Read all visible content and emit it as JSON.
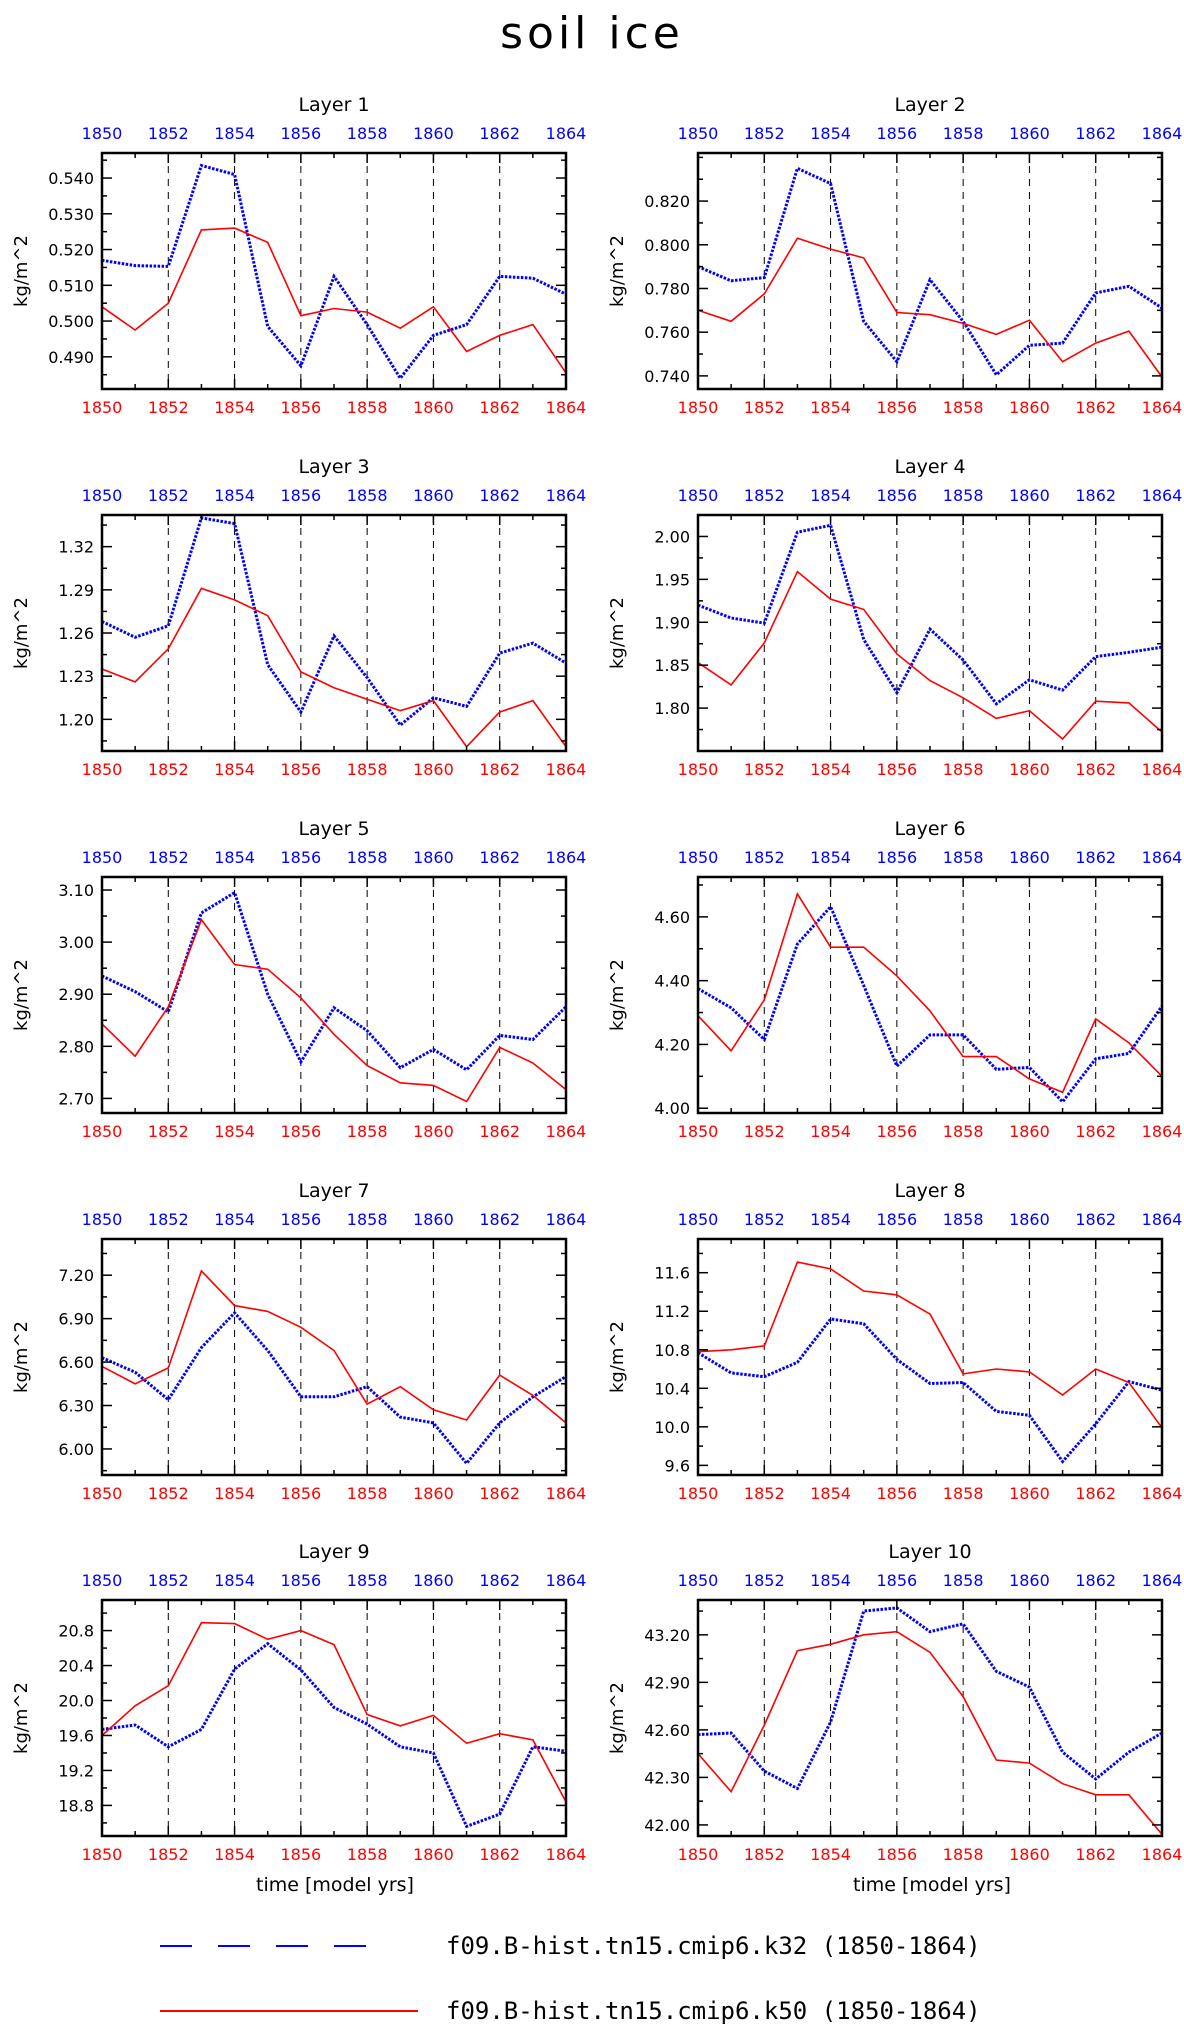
{
  "page": {
    "title": "soil ice",
    "ylabel": "kg/m^2",
    "xlabel": "time [model yrs]"
  },
  "legend": [
    {
      "label": "f09.B-hist.tn15.cmip6.k32 (1850-1864)",
      "color": "#0000ff",
      "style": "dashed"
    },
    {
      "label": "f09.B-hist.tn15.cmip6.k50 (1850-1864)",
      "color": "#ff0000",
      "style": "solid"
    }
  ],
  "colors": {
    "top_axis": "#0000ff",
    "bottom_axis": "#ff0000",
    "series_k32": "#0000ff",
    "series_k50": "#ff0000"
  },
  "chart_data": [
    {
      "type": "line",
      "title": "Layer 1",
      "x": [
        1850,
        1851,
        1852,
        1853,
        1854,
        1855,
        1856,
        1857,
        1858,
        1859,
        1860,
        1861,
        1862,
        1863,
        1864
      ],
      "x_ticks": [
        "1850",
        "1852",
        "1854",
        "1856",
        "1858",
        "1860",
        "1862",
        "1864"
      ],
      "ylim": [
        0.481,
        0.547
      ],
      "y_ticks": [
        "0.490",
        "0.500",
        "0.510",
        "0.520",
        "0.530",
        "0.540"
      ],
      "series": [
        {
          "values": [
            0.517,
            0.5155,
            0.5153,
            0.5435,
            0.541,
            0.4985,
            0.4875,
            0.5125,
            0.499,
            0.484,
            0.496,
            0.499,
            0.5125,
            0.512,
            0.5075
          ]
        },
        {
          "values": [
            0.504,
            0.4975,
            0.505,
            0.5255,
            0.526,
            0.522,
            0.5015,
            0.5035,
            0.5025,
            0.498,
            0.504,
            0.4915,
            0.496,
            0.499,
            0.4855
          ]
        }
      ]
    },
    {
      "type": "line",
      "title": "Layer 2",
      "x": [
        1850,
        1851,
        1852,
        1853,
        1854,
        1855,
        1856,
        1857,
        1858,
        1859,
        1860,
        1861,
        1862,
        1863,
        1864
      ],
      "x_ticks": [
        "1850",
        "1852",
        "1854",
        "1856",
        "1858",
        "1860",
        "1862",
        "1864"
      ],
      "ylim": [
        0.734,
        0.842
      ],
      "y_ticks": [
        "0.740",
        "0.760",
        "0.780",
        "0.800",
        "0.820"
      ],
      "series": [
        {
          "values": [
            0.79,
            0.7835,
            0.785,
            0.835,
            0.828,
            0.765,
            0.7465,
            0.784,
            0.765,
            0.7405,
            0.754,
            0.755,
            0.778,
            0.781,
            0.771
          ]
        },
        {
          "values": [
            0.77,
            0.765,
            0.7775,
            0.803,
            0.798,
            0.794,
            0.769,
            0.768,
            0.764,
            0.759,
            0.7655,
            0.7465,
            0.755,
            0.7605,
            0.7395
          ]
        }
      ]
    },
    {
      "type": "line",
      "title": "Layer 3",
      "x": [
        1850,
        1851,
        1852,
        1853,
        1854,
        1855,
        1856,
        1857,
        1858,
        1859,
        1860,
        1861,
        1862,
        1863,
        1864
      ],
      "x_ticks": [
        "1850",
        "1852",
        "1854",
        "1856",
        "1858",
        "1860",
        "1862",
        "1864"
      ],
      "ylim": [
        1.178,
        1.342
      ],
      "y_ticks": [
        "1.20",
        "1.23",
        "1.26",
        "1.29",
        "1.32"
      ],
      "series": [
        {
          "values": [
            1.268,
            1.257,
            1.265,
            1.34,
            1.336,
            1.238,
            1.205,
            1.258,
            1.229,
            1.196,
            1.215,
            1.209,
            1.246,
            1.253,
            1.239
          ]
        },
        {
          "values": [
            1.235,
            1.226,
            1.249,
            1.291,
            1.283,
            1.272,
            1.233,
            1.222,
            1.214,
            1.206,
            1.213,
            1.181,
            1.205,
            1.213,
            1.181
          ]
        }
      ]
    },
    {
      "type": "line",
      "title": "Layer 4",
      "x": [
        1850,
        1851,
        1852,
        1853,
        1854,
        1855,
        1856,
        1857,
        1858,
        1859,
        1860,
        1861,
        1862,
        1863,
        1864
      ],
      "x_ticks": [
        "1850",
        "1852",
        "1854",
        "1856",
        "1858",
        "1860",
        "1862",
        "1864"
      ],
      "ylim": [
        1.75,
        2.025
      ],
      "y_ticks": [
        "1.80",
        "1.85",
        "1.90",
        "1.95",
        "2.00"
      ],
      "series": [
        {
          "values": [
            1.92,
            1.905,
            1.899,
            2.005,
            2.013,
            1.88,
            1.818,
            1.892,
            1.856,
            1.805,
            1.833,
            1.821,
            1.86,
            1.865,
            1.871
          ]
        },
        {
          "values": [
            1.853,
            1.827,
            1.876,
            1.959,
            1.927,
            1.915,
            1.863,
            1.832,
            1.812,
            1.788,
            1.797,
            1.764,
            1.808,
            1.806,
            1.772
          ]
        }
      ]
    },
    {
      "type": "line",
      "title": "Layer 5",
      "x": [
        1850,
        1851,
        1852,
        1853,
        1854,
        1855,
        1856,
        1857,
        1858,
        1859,
        1860,
        1861,
        1862,
        1863,
        1864
      ],
      "x_ticks": [
        "1850",
        "1852",
        "1854",
        "1856",
        "1858",
        "1860",
        "1862",
        "1864"
      ],
      "ylim": [
        2.672,
        3.125
      ],
      "y_ticks": [
        "2.70",
        "2.80",
        "2.90",
        "3.00",
        "3.10"
      ],
      "series": [
        {
          "values": [
            2.935,
            2.905,
            2.866,
            3.056,
            3.095,
            2.9,
            2.77,
            2.874,
            2.83,
            2.759,
            2.794,
            2.755,
            2.821,
            2.813,
            2.876
          ]
        },
        {
          "values": [
            2.843,
            2.781,
            2.876,
            3.043,
            2.957,
            2.948,
            2.893,
            2.823,
            2.763,
            2.73,
            2.725,
            2.694,
            2.798,
            2.768,
            2.717
          ]
        }
      ]
    },
    {
      "type": "line",
      "title": "Layer 6",
      "x": [
        1850,
        1851,
        1852,
        1853,
        1854,
        1855,
        1856,
        1857,
        1858,
        1859,
        1860,
        1861,
        1862,
        1863,
        1864
      ],
      "x_ticks": [
        "1850",
        "1852",
        "1854",
        "1856",
        "1858",
        "1860",
        "1862",
        "1864"
      ],
      "ylim": [
        3.985,
        4.725
      ],
      "y_ticks": [
        "4.00",
        "4.20",
        "4.40",
        "4.60"
      ],
      "series": [
        {
          "values": [
            4.375,
            4.315,
            4.215,
            4.515,
            4.632,
            4.385,
            4.132,
            4.23,
            4.23,
            4.122,
            4.128,
            4.02,
            4.155,
            4.172,
            4.32
          ]
        },
        {
          "values": [
            4.29,
            4.18,
            4.34,
            4.672,
            4.505,
            4.505,
            4.415,
            4.305,
            4.162,
            4.162,
            4.092,
            4.05,
            4.28,
            4.205,
            4.1
          ]
        }
      ]
    },
    {
      "type": "line",
      "title": "Layer 7",
      "x": [
        1850,
        1851,
        1852,
        1853,
        1854,
        1855,
        1856,
        1857,
        1858,
        1859,
        1860,
        1861,
        1862,
        1863,
        1864
      ],
      "x_ticks": [
        "1850",
        "1852",
        "1854",
        "1856",
        "1858",
        "1860",
        "1862",
        "1864"
      ],
      "ylim": [
        5.82,
        7.45
      ],
      "y_ticks": [
        "6.00",
        "6.30",
        "6.60",
        "6.90",
        "7.20"
      ],
      "series": [
        {
          "values": [
            6.63,
            6.53,
            6.34,
            6.7,
            6.94,
            6.68,
            6.36,
            6.36,
            6.43,
            6.22,
            6.18,
            5.9,
            6.18,
            6.36,
            6.5
          ]
        },
        {
          "values": [
            6.57,
            6.45,
            6.56,
            7.23,
            6.99,
            6.95,
            6.84,
            6.68,
            6.31,
            6.43,
            6.27,
            6.2,
            6.51,
            6.37,
            6.18
          ]
        }
      ]
    },
    {
      "type": "line",
      "title": "Layer 8",
      "x": [
        1850,
        1851,
        1852,
        1853,
        1854,
        1855,
        1856,
        1857,
        1858,
        1859,
        1860,
        1861,
        1862,
        1863,
        1864
      ],
      "x_ticks": [
        "1850",
        "1852",
        "1854",
        "1856",
        "1858",
        "1860",
        "1862",
        "1864"
      ],
      "ylim": [
        9.5,
        11.95
      ],
      "y_ticks": [
        "9.6",
        "10.0",
        "10.4",
        "10.8",
        "11.2",
        "11.6"
      ],
      "series": [
        {
          "values": [
            10.77,
            10.56,
            10.52,
            10.67,
            11.12,
            11.07,
            10.7,
            10.45,
            10.46,
            10.16,
            10.12,
            9.64,
            10.03,
            10.47,
            10.38
          ]
        },
        {
          "values": [
            10.78,
            10.8,
            10.84,
            11.71,
            11.64,
            11.41,
            11.37,
            11.17,
            10.55,
            10.6,
            10.57,
            10.33,
            10.6,
            10.46,
            9.99
          ]
        }
      ]
    },
    {
      "type": "line",
      "title": "Layer 9",
      "x": [
        1850,
        1851,
        1852,
        1853,
        1854,
        1855,
        1856,
        1857,
        1858,
        1859,
        1860,
        1861,
        1862,
        1863,
        1864
      ],
      "x_ticks": [
        "1850",
        "1852",
        "1854",
        "1856",
        "1858",
        "1860",
        "1862",
        "1864"
      ],
      "ylim": [
        18.45,
        21.15
      ],
      "y_ticks": [
        "18.8",
        "19.2",
        "19.6",
        "20.0",
        "20.4",
        "20.8"
      ],
      "series": [
        {
          "values": [
            19.67,
            19.72,
            19.47,
            19.67,
            20.36,
            20.65,
            20.35,
            19.92,
            19.73,
            19.47,
            19.4,
            18.56,
            18.7,
            19.47,
            19.42
          ]
        },
        {
          "values": [
            19.6,
            19.94,
            20.17,
            20.89,
            20.88,
            20.7,
            20.8,
            20.64,
            19.84,
            19.71,
            19.83,
            19.51,
            19.62,
            19.55,
            18.84
          ]
        }
      ]
    },
    {
      "type": "line",
      "title": "Layer 10",
      "x": [
        1850,
        1851,
        1852,
        1853,
        1854,
        1855,
        1856,
        1857,
        1858,
        1859,
        1860,
        1861,
        1862,
        1863,
        1864
      ],
      "x_ticks": [
        "1850",
        "1852",
        "1854",
        "1856",
        "1858",
        "1860",
        "1862",
        "1864"
      ],
      "ylim": [
        41.93,
        43.42
      ],
      "y_ticks": [
        "42.00",
        "42.30",
        "42.60",
        "42.90",
        "43.20"
      ],
      "series": [
        {
          "values": [
            42.57,
            42.58,
            42.34,
            42.23,
            42.65,
            43.35,
            43.37,
            43.22,
            43.27,
            42.97,
            42.87,
            42.46,
            42.29,
            42.46,
            42.58
          ]
        },
        {
          "values": [
            42.45,
            42.21,
            42.63,
            43.1,
            43.14,
            43.2,
            43.22,
            43.09,
            42.81,
            42.41,
            42.39,
            42.26,
            42.19,
            42.19,
            41.94
          ]
        }
      ]
    }
  ]
}
